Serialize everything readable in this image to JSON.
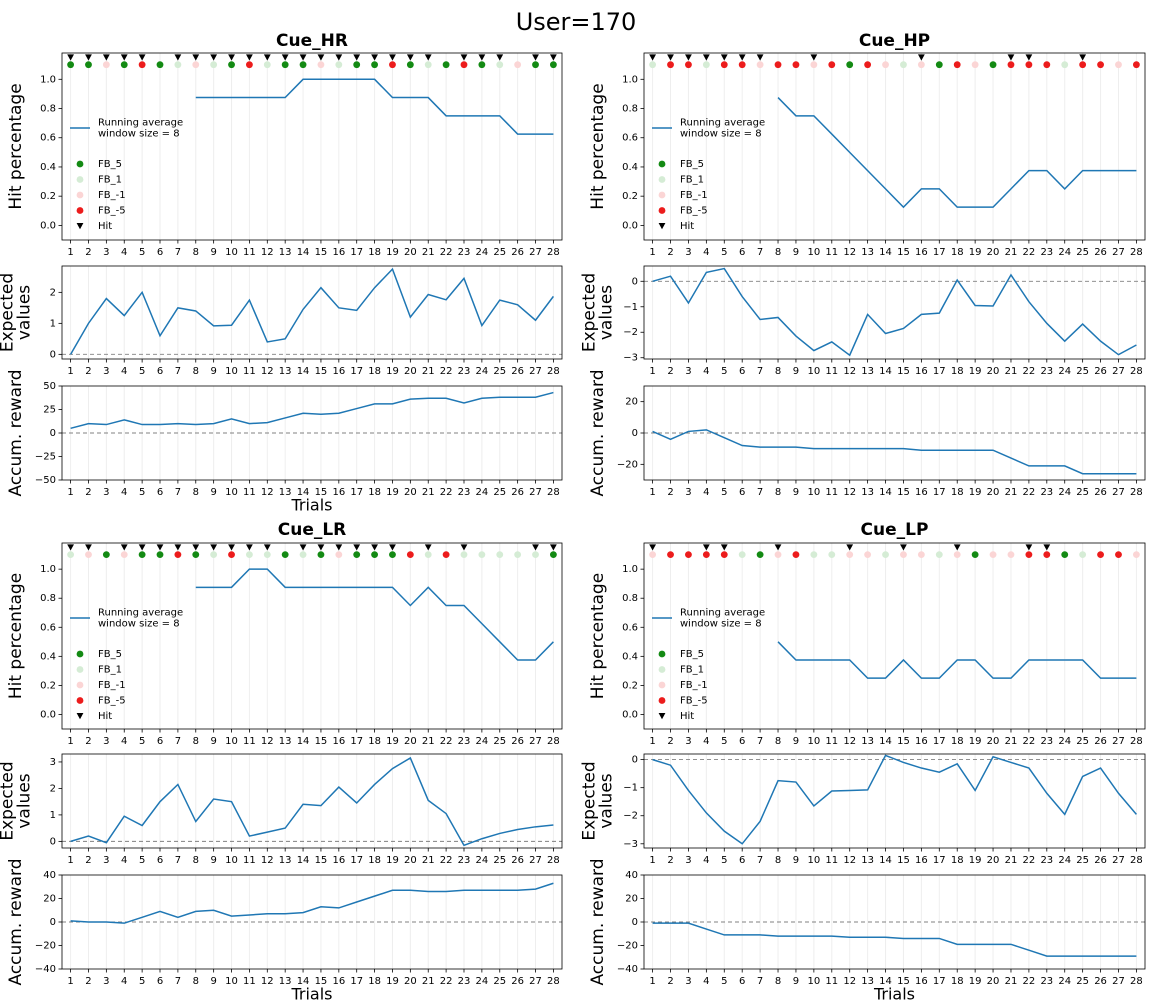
{
  "figure_title": "User=170",
  "colors": {
    "line": "#1f77b4",
    "fb5": "#138a13",
    "fb1": "#d5ecd5",
    "fbm1": "#fbd5d5",
    "fbm5": "#ec1c1c",
    "hit": "#000000",
    "zero_line": "#808080",
    "grid": "#eeeeee"
  },
  "chart_data": [
    {
      "type": "line",
      "panel": "Cue_HR",
      "title": "Cue_HR",
      "x": [
        1,
        2,
        3,
        4,
        5,
        6,
        7,
        8,
        9,
        10,
        11,
        12,
        13,
        14,
        15,
        16,
        17,
        18,
        19,
        20,
        21,
        22,
        23,
        24,
        25,
        26,
        27,
        28
      ],
      "xlabel": "Trials",
      "hit_percentage": {
        "ylabel": "Hit percentage",
        "ylim": [
          -0.1,
          1.18
        ],
        "yticks": [
          "0.0",
          "0.2",
          "0.4",
          "0.6",
          "0.8",
          "1.0"
        ],
        "running_average": [
          null,
          null,
          null,
          null,
          null,
          null,
          null,
          0.875,
          0.875,
          0.875,
          0.875,
          0.875,
          0.875,
          1.0,
          1.0,
          1.0,
          1.0,
          1.0,
          0.875,
          0.875,
          0.875,
          0.75,
          0.75,
          0.75,
          0.75,
          0.625,
          0.625,
          0.625
        ],
        "feedback": [
          "FB_5",
          "FB_5",
          "FB_-1",
          "FB_5",
          "FB_-5",
          "FB_5",
          "FB_1",
          "FB_-1",
          "FB_1",
          "FB_5",
          "FB_-5",
          "FB_1",
          "FB_5",
          "FB_5",
          "FB_-1",
          "FB_1",
          "FB_5",
          "FB_5",
          "FB_-5",
          "FB_5",
          "FB_1",
          "FB_5",
          "FB_-5",
          "FB_5",
          "FB_1",
          "FB_-1",
          "FB_5",
          "FB_5"
        ],
        "hits": [
          1,
          2,
          3,
          4,
          5,
          7,
          8,
          9,
          10,
          11,
          12,
          13,
          14,
          15,
          16,
          17,
          18,
          19,
          20,
          21,
          23,
          24,
          25,
          27,
          28
        ],
        "legend": {
          "line": "Running average\nwindow size = 8",
          "items": [
            "FB_5",
            "FB_1",
            "FB_-1",
            "FB_-5",
            "Hit"
          ],
          "position": "center-left"
        }
      },
      "expected_values": {
        "ylabel": "Expected\nvalues",
        "ylim": [
          -0.15,
          2.85
        ],
        "yticks": [
          "0",
          "1",
          "2"
        ],
        "values": [
          0.0,
          1.0,
          1.8,
          1.25,
          2.0,
          0.6,
          1.5,
          1.4,
          0.92,
          0.94,
          1.75,
          0.4,
          0.5,
          1.45,
          2.15,
          1.5,
          1.42,
          2.15,
          2.75,
          1.2,
          1.93,
          1.76,
          2.45,
          0.93,
          1.75,
          1.6,
          1.1,
          1.87
        ]
      },
      "accum_reward": {
        "ylabel": "Accum. reward",
        "ylim": [
          -50,
          50
        ],
        "yticks": [
          "−50",
          "−25",
          "0",
          "25",
          "50"
        ],
        "values": [
          5,
          10,
          9,
          14,
          9,
          9,
          10,
          9,
          10,
          15,
          10,
          11,
          16,
          21,
          20,
          21,
          26,
          31,
          31,
          36,
          37,
          37,
          32,
          37,
          38,
          38,
          38,
          43
        ]
      }
    },
    {
      "type": "line",
      "panel": "Cue_HP",
      "title": "Cue_HP",
      "x": [
        1,
        2,
        3,
        4,
        5,
        6,
        7,
        8,
        9,
        10,
        11,
        12,
        13,
        14,
        15,
        16,
        17,
        18,
        19,
        20,
        21,
        22,
        23,
        24,
        25,
        26,
        27,
        28
      ],
      "xlabel": "",
      "hit_percentage": {
        "ylabel": "Hit percentage",
        "ylim": [
          -0.1,
          1.18
        ],
        "yticks": [
          "0.0",
          "0.2",
          "0.4",
          "0.6",
          "0.8",
          "1.0"
        ],
        "running_average": [
          null,
          null,
          null,
          null,
          null,
          null,
          null,
          0.875,
          0.75,
          0.75,
          0.625,
          0.5,
          0.375,
          0.25,
          0.125,
          0.25,
          0.25,
          0.125,
          0.125,
          0.125,
          0.25,
          0.375,
          0.375,
          0.25,
          0.375,
          0.375,
          0.375,
          0.375
        ],
        "feedback": [
          "FB_1",
          "FB_-5",
          "FB_-5",
          "FB_1",
          "FB_-5",
          "FB_-5",
          "FB_-1",
          "FB_-5",
          "FB_-5",
          "FB_-1",
          "FB_-5",
          "FB_5",
          "FB_-5",
          "FB_-1",
          "FB_1",
          "FB_-1",
          "FB_5",
          "FB_-5",
          "FB_-1",
          "FB_5",
          "FB_-5",
          "FB_-5",
          "FB_-5",
          "FB_1",
          "FB_-5",
          "FB_-5",
          "FB_-1",
          "FB_-5"
        ],
        "hits": [
          1,
          2,
          3,
          4,
          5,
          6,
          7,
          10,
          16,
          21,
          22,
          25
        ],
        "legend": {
          "line": "Running average\nwindow size = 8",
          "items": [
            "FB_5",
            "FB_1",
            "FB_-1",
            "FB_-5",
            "Hit"
          ],
          "position": "center-left"
        }
      },
      "expected_values": {
        "ylabel": "Expected\nvalues",
        "ylim": [
          -3.05,
          0.6
        ],
        "yticks": [
          "−3",
          "−2",
          "−1",
          "0"
        ],
        "values": [
          0.0,
          0.2,
          -0.85,
          0.35,
          0.5,
          -0.6,
          -1.5,
          -1.42,
          -2.15,
          -2.72,
          -2.38,
          -2.9,
          -1.3,
          -2.05,
          -1.85,
          -1.3,
          -1.25,
          0.05,
          -0.95,
          -0.97,
          0.25,
          -0.8,
          -1.65,
          -2.35,
          -1.68,
          -2.35,
          -2.88,
          -2.5
        ]
      },
      "accum_reward": {
        "ylabel": "Accum. reward",
        "ylim": [
          -30,
          30
        ],
        "yticks": [
          "−20",
          "0",
          "20"
        ],
        "values": [
          1,
          -4,
          1,
          2,
          -3,
          -8,
          -9,
          -9,
          -9,
          -10,
          -10,
          -10,
          -10,
          -10,
          -10,
          -11,
          -11,
          -11,
          -11,
          -11,
          -16,
          -21,
          -21,
          -21,
          -26,
          -26,
          -26,
          -26
        ]
      }
    },
    {
      "type": "line",
      "panel": "Cue_LR",
      "title": "Cue_LR",
      "x": [
        1,
        2,
        3,
        4,
        5,
        6,
        7,
        8,
        9,
        10,
        11,
        12,
        13,
        14,
        15,
        16,
        17,
        18,
        19,
        20,
        21,
        22,
        23,
        24,
        25,
        26,
        27,
        28
      ],
      "xlabel": "Trials",
      "hit_percentage": {
        "ylabel": "Hit percentage",
        "ylim": [
          -0.1,
          1.18
        ],
        "yticks": [
          "0.0",
          "0.2",
          "0.4",
          "0.6",
          "0.8",
          "1.0"
        ],
        "running_average": [
          null,
          null,
          null,
          null,
          null,
          null,
          null,
          0.875,
          0.875,
          0.875,
          1.0,
          1.0,
          0.875,
          0.875,
          0.875,
          0.875,
          0.875,
          0.875,
          0.875,
          0.75,
          0.875,
          0.75,
          0.75,
          0.625,
          0.5,
          0.375,
          0.375,
          0.5
        ],
        "feedback": [
          "FB_1",
          "FB_-1",
          "FB_5",
          "FB_-1",
          "FB_5",
          "FB_5",
          "FB_-5",
          "FB_5",
          "FB_1",
          "FB_-5",
          "FB_1",
          "FB_1",
          "FB_5",
          "FB_1",
          "FB_5",
          "FB_-1",
          "FB_5",
          "FB_5",
          "FB_5",
          "FB_-5",
          "FB_1",
          "FB_-5",
          "FB_1",
          "FB_1",
          "FB_1",
          "FB_1",
          "FB_1",
          "FB_5"
        ],
        "hits": [
          1,
          2,
          4,
          5,
          6,
          7,
          8,
          9,
          10,
          11,
          12,
          14,
          15,
          16,
          17,
          18,
          19,
          21,
          23,
          27,
          28
        ],
        "legend": {
          "line": "Running average\nwindow size = 8",
          "items": [
            "FB_5",
            "FB_1",
            "FB_-1",
            "FB_-5",
            "Hit"
          ],
          "position": "center-left"
        }
      },
      "expected_values": {
        "ylabel": "Expected\nvalues",
        "ylim": [
          -0.25,
          3.3
        ],
        "yticks": [
          "0",
          "1",
          "2",
          "3"
        ],
        "values": [
          0.0,
          0.2,
          -0.05,
          0.95,
          0.6,
          1.5,
          2.15,
          0.75,
          1.6,
          1.5,
          0.2,
          0.35,
          0.5,
          1.4,
          1.35,
          2.05,
          1.45,
          2.15,
          2.75,
          3.15,
          1.55,
          1.05,
          -0.15,
          0.1,
          0.3,
          0.45,
          0.55,
          0.62
        ]
      },
      "accum_reward": {
        "ylabel": "Accum. reward",
        "ylim": [
          -40,
          40
        ],
        "yticks": [
          "−40",
          "−20",
          "0",
          "20",
          "40"
        ],
        "values": [
          1,
          0,
          0,
          -1,
          4,
          9,
          4,
          9,
          10,
          5,
          6,
          7,
          7,
          8,
          13,
          12,
          17,
          22,
          27,
          27,
          26,
          26,
          27,
          27,
          27,
          27,
          28,
          33
        ]
      }
    },
    {
      "type": "line",
      "panel": "Cue_LP",
      "title": "Cue_LP",
      "x": [
        1,
        2,
        3,
        4,
        5,
        6,
        7,
        8,
        9,
        10,
        11,
        12,
        13,
        14,
        15,
        16,
        17,
        18,
        19,
        20,
        21,
        22,
        23,
        24,
        25,
        26,
        27,
        28
      ],
      "xlabel": "Trials",
      "hit_percentage": {
        "ylabel": "Hit percentage",
        "ylim": [
          -0.1,
          1.18
        ],
        "yticks": [
          "0.0",
          "0.2",
          "0.4",
          "0.6",
          "0.8",
          "1.0"
        ],
        "running_average": [
          null,
          null,
          null,
          null,
          null,
          null,
          null,
          0.5,
          0.375,
          0.375,
          0.375,
          0.375,
          0.25,
          0.25,
          0.375,
          0.25,
          0.25,
          0.375,
          0.375,
          0.25,
          0.25,
          0.375,
          0.375,
          0.375,
          0.375,
          0.25,
          0.25,
          0.25
        ],
        "feedback": [
          "FB_-1",
          "FB_-5",
          "FB_-5",
          "FB_-5",
          "FB_-5",
          "FB_1",
          "FB_5",
          "FB_-1",
          "FB_-5",
          "FB_1",
          "FB_1",
          "FB_-1",
          "FB_-1",
          "FB_1",
          "FB_-1",
          "FB_-1",
          "FB_1",
          "FB_-1",
          "FB_5",
          "FB_-1",
          "FB_-1",
          "FB_-5",
          "FB_-5",
          "FB_5",
          "FB_1",
          "FB_-5",
          "FB_-5",
          "FB_-1"
        ],
        "hits": [
          1,
          4,
          5,
          8,
          12,
          15,
          18,
          22,
          23
        ],
        "legend": {
          "line": "Running average\nwindow size = 8",
          "items": [
            "FB_5",
            "FB_1",
            "FB_-1",
            "FB_-5",
            "Hit"
          ],
          "position": "center-left"
        }
      },
      "expected_values": {
        "ylabel": "Expected\nvalues",
        "ylim": [
          -3.15,
          0.2
        ],
        "yticks": [
          "−3",
          "−2",
          "−1",
          "0"
        ],
        "values": [
          0.0,
          -0.2,
          -1.1,
          -1.9,
          -2.55,
          -3.0,
          -2.2,
          -0.75,
          -0.8,
          -1.65,
          -1.12,
          -1.1,
          -1.08,
          0.15,
          -0.1,
          -0.3,
          -0.45,
          -0.15,
          -1.1,
          0.1,
          -0.1,
          -0.3,
          -1.2,
          -1.95,
          -0.6,
          -0.3,
          -1.2,
          -1.95
        ]
      },
      "accum_reward": {
        "ylabel": "Accum. reward",
        "ylim": [
          -40,
          40
        ],
        "yticks": [
          "−40",
          "−20",
          "0",
          "20",
          "40"
        ],
        "values": [
          -1,
          -1,
          -1,
          -6,
          -11,
          -11,
          -11,
          -12,
          -12,
          -12,
          -12,
          -13,
          -13,
          -13,
          -14,
          -14,
          -14,
          -19,
          -19,
          -19,
          -19,
          -24,
          -29,
          -29,
          -29,
          -29,
          -29,
          -29
        ]
      }
    }
  ]
}
